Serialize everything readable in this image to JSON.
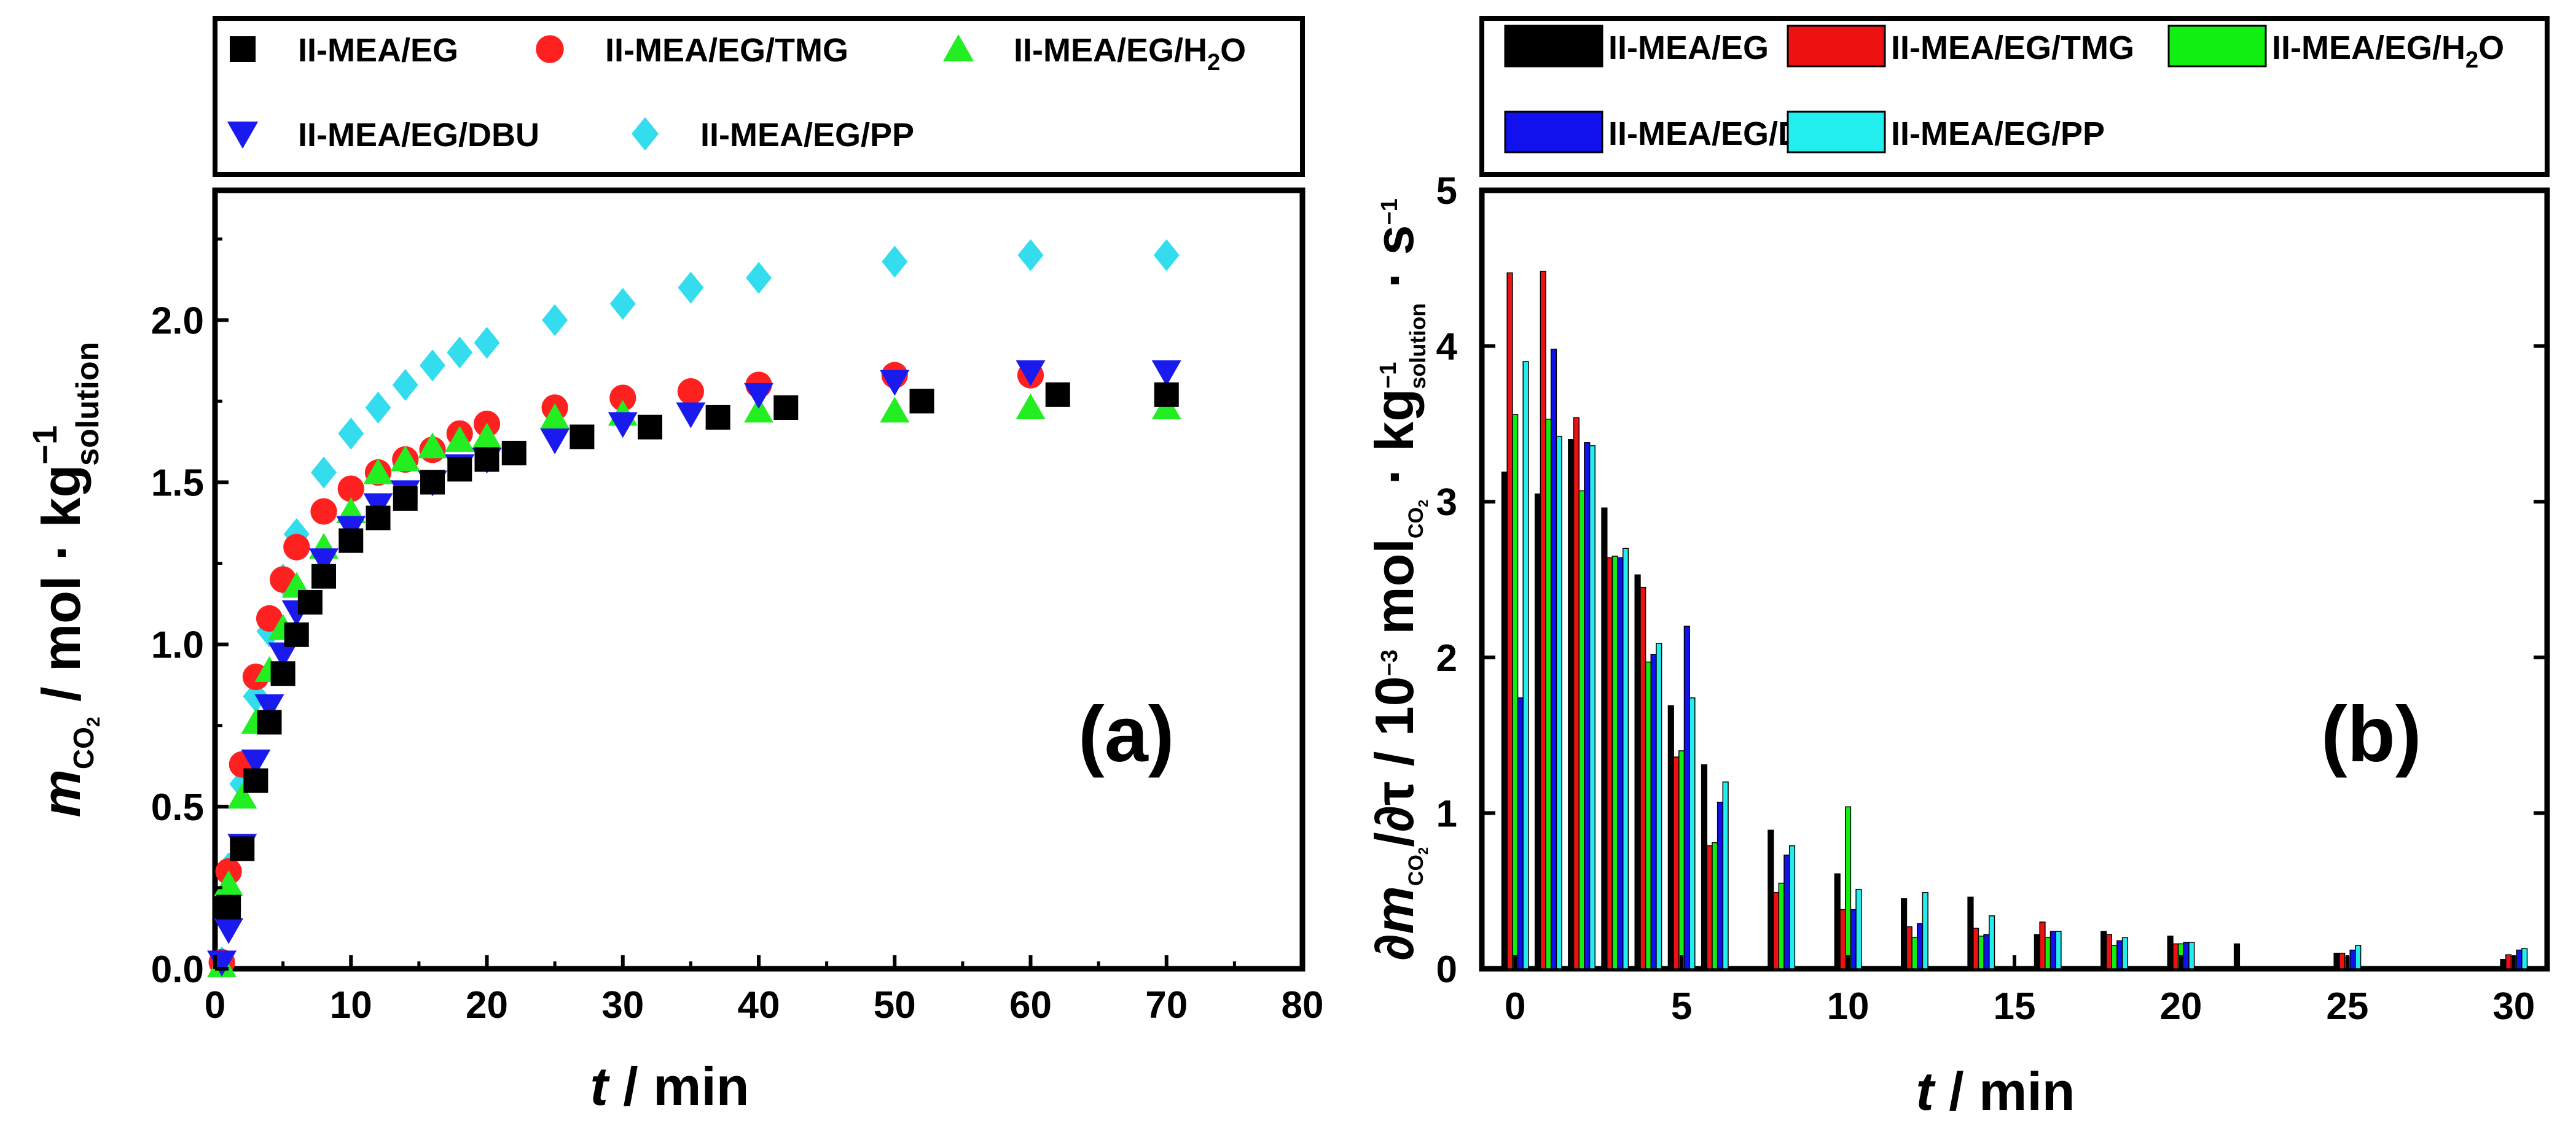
{
  "chart_data": [
    {
      "id": "a",
      "type": "scatter",
      "panel_label": "(a)",
      "xlabel_var": "t",
      "xlabel_unit": " / min",
      "ylabel_var": "m",
      "ylabel_var_sub": "CO",
      "ylabel_var_sub2": "2",
      "ylabel_unit": " / mol · kg",
      "ylabel_sup": "−1",
      "ylabel_sub": "solution",
      "xlim": [
        0,
        80
      ],
      "ylim": [
        0,
        2.4
      ],
      "xticks": [
        "0",
        "10",
        "20",
        "30",
        "40",
        "50",
        "60",
        "70",
        "80"
      ],
      "yticks": [
        "0.0",
        "0.5",
        "1.0",
        "1.5",
        "2.0"
      ],
      "legend_position": "top",
      "series": [
        {
          "name": "II-MEA/EG",
          "name_sub": "",
          "marker": "square",
          "color": "#000000",
          "x": [
            1,
            2,
            3,
            4,
            5,
            6,
            7,
            8,
            10,
            12,
            14,
            16,
            18,
            20,
            22,
            27,
            32,
            37,
            42,
            52,
            62,
            70
          ],
          "y": [
            0.19,
            0.37,
            0.58,
            0.76,
            0.91,
            1.03,
            1.13,
            1.21,
            1.32,
            1.39,
            1.45,
            1.5,
            1.54,
            1.57,
            1.59,
            1.64,
            1.67,
            1.7,
            1.73,
            1.75,
            1.77,
            1.77
          ]
        },
        {
          "name": "II-MEA/EG/TMG",
          "name_sub": "",
          "marker": "circle",
          "color": "#ff2020",
          "x": [
            0.5,
            1,
            2,
            3,
            4,
            5,
            6,
            8,
            10,
            12,
            14,
            16,
            18,
            20,
            25,
            30,
            35,
            40,
            50,
            60
          ],
          "y": [
            0.02,
            0.3,
            0.63,
            0.9,
            1.08,
            1.2,
            1.3,
            1.41,
            1.48,
            1.53,
            1.57,
            1.6,
            1.65,
            1.68,
            1.73,
            1.76,
            1.78,
            1.8,
            1.83,
            1.83
          ]
        },
        {
          "name": "II-MEA/EG/H",
          "name_sub": "2",
          "name_tail": "O",
          "marker": "triangle-up",
          "color": "#22ee22",
          "x": [
            0.5,
            1,
            2,
            3,
            4,
            5,
            6,
            8,
            10,
            12,
            14,
            16,
            18,
            20,
            25,
            30,
            40,
            50,
            60,
            70
          ],
          "y": [
            0.01,
            0.26,
            0.53,
            0.76,
            0.92,
            1.05,
            1.18,
            1.3,
            1.41,
            1.53,
            1.57,
            1.61,
            1.63,
            1.64,
            1.7,
            1.71,
            1.72,
            1.72,
            1.73,
            1.73
          ]
        },
        {
          "name": "II-MEA/EG/DBU",
          "name_sub": "",
          "marker": "triangle-down",
          "color": "#1a1aee",
          "x": [
            0.5,
            1,
            2,
            3,
            4,
            5,
            6,
            8,
            10,
            12,
            14,
            16,
            18,
            20,
            25,
            30,
            35,
            40,
            50,
            60,
            70
          ],
          "y": [
            0.02,
            0.12,
            0.38,
            0.64,
            0.81,
            0.97,
            1.1,
            1.26,
            1.36,
            1.43,
            1.47,
            1.5,
            1.55,
            1.57,
            1.63,
            1.68,
            1.71,
            1.77,
            1.81,
            1.84,
            1.84
          ]
        },
        {
          "name": "II-MEA/EG/PP",
          "name_sub": "",
          "marker": "diamond",
          "color": "#33ddee",
          "x": [
            0.5,
            1,
            2,
            3,
            4,
            5,
            6,
            8,
            10,
            12,
            14,
            16,
            18,
            20,
            25,
            30,
            35,
            40,
            50,
            60,
            70
          ],
          "y": [
            0.02,
            0.31,
            0.57,
            0.84,
            1.04,
            1.2,
            1.34,
            1.53,
            1.65,
            1.73,
            1.8,
            1.86,
            1.9,
            1.93,
            2.0,
            2.05,
            2.1,
            2.13,
            2.18,
            2.2,
            2.2
          ]
        }
      ]
    },
    {
      "id": "b",
      "type": "bar",
      "panel_label": "(b)",
      "xlabel_var": "t",
      "xlabel_unit": " / min",
      "ylabel_prefix": "∂",
      "ylabel_var": "m",
      "ylabel_var_sub": "CO",
      "ylabel_var_sub2": "2",
      "ylabel_mid": "/∂τ / 10",
      "ylabel_exp": "−3",
      "ylabel_unit1": " mol",
      "ylabel_unit1_sub": "CO",
      "ylabel_unit1_sub2": "2",
      "ylabel_unit2": " · kg",
      "ylabel_sup": "−1",
      "ylabel_sub": "solution",
      "ylabel_tail": " · s",
      "ylabel_tail_sup": "−1",
      "xlim": [
        -1,
        31
      ],
      "ylim": [
        0,
        5
      ],
      "xticks": [
        "0",
        "5",
        "10",
        "15",
        "20",
        "25",
        "30"
      ],
      "yticks": [
        "0",
        "1",
        "2",
        "3",
        "4",
        "5"
      ],
      "legend_position": "top",
      "x": [
        0,
        1,
        2,
        3,
        4,
        5,
        6,
        8,
        10,
        12,
        14,
        16,
        18,
        20,
        22,
        25,
        30
      ],
      "series": [
        {
          "name": "II-MEA/EG",
          "name_sub": "",
          "color": "#000000",
          "values": [
            3.19,
            3.05,
            3.4,
            2.96,
            2.53,
            1.69,
            1.31,
            0.89,
            0.61,
            0.45,
            0.46,
            0.22,
            0.24,
            0.21,
            0.16,
            0.1,
            0.06
          ]
        },
        {
          "name": "II-MEA/EG/TMG",
          "name_sub": "",
          "color": "#ee1111",
          "values": [
            4.47,
            4.48,
            3.54,
            2.64,
            2.45,
            1.36,
            0.79,
            0.49,
            0.38,
            0.27,
            0.26,
            0.3,
            0.22,
            0.16,
            0,
            0.1,
            0.09
          ]
        },
        {
          "name": "II-MEA/EG/H",
          "name_sub": "2",
          "name_tail": "O",
          "color": "#11ee11",
          "values": [
            3.56,
            3.53,
            3.07,
            2.65,
            1.97,
            1.4,
            0.81,
            0.55,
            1.04,
            0.2,
            0.21,
            0.2,
            0.15,
            0.16,
            0,
            0.07,
            0.08
          ]
        },
        {
          "name": "II-MEA/EG/DBU",
          "name_sub": "",
          "color": "#1111ee",
          "values": [
            1.74,
            3.98,
            3.38,
            2.64,
            2.02,
            2.2,
            1.07,
            0.73,
            0.38,
            0.29,
            0.22,
            0.24,
            0.18,
            0.17,
            0,
            0.12,
            0.12
          ]
        },
        {
          "name": "II-MEA/EG/PP",
          "name_sub": "",
          "color": "#22eeee",
          "values": [
            3.9,
            3.42,
            3.36,
            2.7,
            2.09,
            1.74,
            1.2,
            0.79,
            0.51,
            0.49,
            0.34,
            0.24,
            0.2,
            0.17,
            0,
            0.15,
            0.13
          ]
        }
      ]
    }
  ]
}
